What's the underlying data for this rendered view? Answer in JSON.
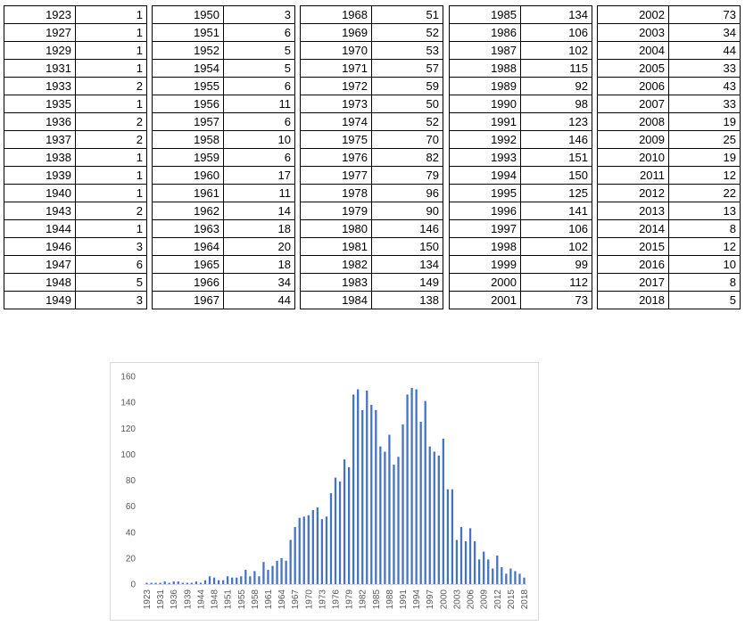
{
  "table": {
    "columns": [
      [
        [
          1923,
          1
        ],
        [
          1927,
          1
        ],
        [
          1929,
          1
        ],
        [
          1931,
          1
        ],
        [
          1933,
          2
        ],
        [
          1935,
          1
        ],
        [
          1936,
          2
        ],
        [
          1937,
          2
        ],
        [
          1938,
          1
        ],
        [
          1939,
          1
        ],
        [
          1940,
          1
        ],
        [
          1943,
          2
        ],
        [
          1944,
          1
        ],
        [
          1946,
          3
        ],
        [
          1947,
          6
        ],
        [
          1948,
          5
        ],
        [
          1949,
          3
        ]
      ],
      [
        [
          1950,
          3
        ],
        [
          1951,
          6
        ],
        [
          1952,
          5
        ],
        [
          1954,
          5
        ],
        [
          1955,
          6
        ],
        [
          1956,
          11
        ],
        [
          1957,
          6
        ],
        [
          1958,
          10
        ],
        [
          1959,
          6
        ],
        [
          1960,
          17
        ],
        [
          1961,
          11
        ],
        [
          1962,
          14
        ],
        [
          1963,
          18
        ],
        [
          1964,
          20
        ],
        [
          1965,
          18
        ],
        [
          1966,
          34
        ],
        [
          1967,
          44
        ]
      ],
      [
        [
          1968,
          51
        ],
        [
          1969,
          52
        ],
        [
          1970,
          53
        ],
        [
          1971,
          57
        ],
        [
          1972,
          59
        ],
        [
          1973,
          50
        ],
        [
          1974,
          52
        ],
        [
          1975,
          70
        ],
        [
          1976,
          82
        ],
        [
          1977,
          79
        ],
        [
          1978,
          96
        ],
        [
          1979,
          90
        ],
        [
          1980,
          146
        ],
        [
          1981,
          150
        ],
        [
          1982,
          134
        ],
        [
          1983,
          149
        ],
        [
          1984,
          138
        ]
      ],
      [
        [
          1985,
          134
        ],
        [
          1986,
          106
        ],
        [
          1987,
          102
        ],
        [
          1988,
          115
        ],
        [
          1989,
          92
        ],
        [
          1990,
          98
        ],
        [
          1991,
          123
        ],
        [
          1992,
          146
        ],
        [
          1993,
          151
        ],
        [
          1994,
          150
        ],
        [
          1995,
          125
        ],
        [
          1996,
          141
        ],
        [
          1997,
          106
        ],
        [
          1998,
          102
        ],
        [
          1999,
          99
        ],
        [
          2000,
          112
        ],
        [
          2001,
          73
        ]
      ],
      [
        [
          2002,
          73
        ],
        [
          2003,
          34
        ],
        [
          2004,
          44
        ],
        [
          2005,
          33
        ],
        [
          2006,
          43
        ],
        [
          2007,
          33
        ],
        [
          2008,
          19
        ],
        [
          2009,
          25
        ],
        [
          2010,
          19
        ],
        [
          2011,
          12
        ],
        [
          2012,
          22
        ],
        [
          2013,
          13
        ],
        [
          2014,
          8
        ],
        [
          2015,
          12
        ],
        [
          2016,
          10
        ],
        [
          2017,
          8
        ],
        [
          2018,
          5
        ]
      ]
    ]
  },
  "chart_data": {
    "type": "bar",
    "title": "",
    "xlabel": "",
    "ylabel": "",
    "ylim": [
      0,
      160
    ],
    "yticks": [
      0,
      20,
      40,
      60,
      80,
      100,
      120,
      140,
      160
    ],
    "x_tick_labels": [
      "1923",
      "1931",
      "1936",
      "1939",
      "1944",
      "1948",
      "1951",
      "1955",
      "1958",
      "1961",
      "1964",
      "1967",
      "1970",
      "1973",
      "1976",
      "1979",
      "1982",
      "1985",
      "1988",
      "1991",
      "1994",
      "1997",
      "2000",
      "2003",
      "2006",
      "2009",
      "2012",
      "2015",
      "2018"
    ],
    "bar_color": "#4472c4",
    "grid": false,
    "categories": [
      "1923",
      "1927",
      "1929",
      "1931",
      "1933",
      "1935",
      "1936",
      "1937",
      "1938",
      "1939",
      "1940",
      "1943",
      "1944",
      "1946",
      "1947",
      "1948",
      "1949",
      "1950",
      "1951",
      "1952",
      "1954",
      "1955",
      "1956",
      "1957",
      "1958",
      "1959",
      "1960",
      "1961",
      "1962",
      "1963",
      "1964",
      "1965",
      "1966",
      "1967",
      "1968",
      "1969",
      "1970",
      "1971",
      "1972",
      "1973",
      "1974",
      "1975",
      "1976",
      "1977",
      "1978",
      "1979",
      "1980",
      "1981",
      "1982",
      "1983",
      "1984",
      "1985",
      "1986",
      "1987",
      "1988",
      "1989",
      "1990",
      "1991",
      "1992",
      "1993",
      "1994",
      "1995",
      "1996",
      "1997",
      "1998",
      "1999",
      "2000",
      "2001",
      "2002",
      "2003",
      "2004",
      "2005",
      "2006",
      "2007",
      "2008",
      "2009",
      "2010",
      "2011",
      "2012",
      "2013",
      "2014",
      "2015",
      "2016",
      "2017",
      "2018"
    ],
    "values": [
      1,
      1,
      1,
      1,
      2,
      1,
      2,
      2,
      1,
      1,
      1,
      2,
      1,
      3,
      6,
      5,
      3,
      3,
      6,
      5,
      5,
      6,
      11,
      6,
      10,
      6,
      17,
      11,
      14,
      18,
      20,
      18,
      34,
      44,
      51,
      52,
      53,
      57,
      59,
      50,
      52,
      70,
      82,
      79,
      96,
      90,
      146,
      150,
      134,
      149,
      138,
      134,
      106,
      102,
      115,
      92,
      98,
      123,
      146,
      151,
      150,
      125,
      141,
      106,
      102,
      99,
      112,
      73,
      73,
      34,
      44,
      33,
      43,
      33,
      19,
      25,
      19,
      12,
      22,
      13,
      8,
      12,
      10,
      8,
      5
    ]
  }
}
